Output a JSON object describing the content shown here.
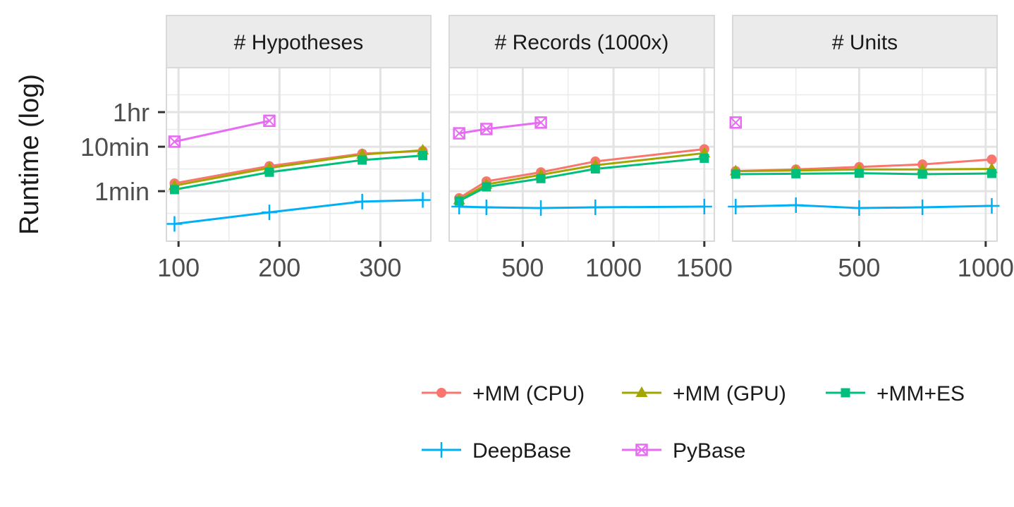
{
  "chart_data": {
    "type": "line",
    "ylabel": "Runtime (log)",
    "y_scale": "log",
    "y_unit": "seconds",
    "y_ticks": [
      {
        "label": "1min",
        "value": 60
      },
      {
        "label": "10min",
        "value": 600
      },
      {
        "label": "1hr",
        "value": 3600
      }
    ],
    "ylim": [
      4.5,
      36000
    ],
    "grid": true,
    "legend_position": "bottom-right",
    "colors": {
      "+MM (CPU)": "#F8766D",
      "+MM (GPU)": "#A3A500",
      "+MM+ES": "#00BF7D",
      "DeepBase": "#00B0F6",
      "PyBase": "#E76BF3"
    },
    "legend": [
      {
        "name": "+MM (CPU)",
        "marker": "circle"
      },
      {
        "name": "+MM (GPU)",
        "marker": "triangle"
      },
      {
        "name": "+MM+ES",
        "marker": "square"
      },
      {
        "name": "DeepBase",
        "marker": "plus"
      },
      {
        "name": "PyBase",
        "marker": "box-cross"
      }
    ],
    "panels": [
      {
        "strip": "# Hypotheses",
        "xlim": [
          88,
          350
        ],
        "x_ticks": [
          100,
          200,
          300
        ],
        "x_tick_labels": [
          "100",
          "200",
          "300"
        ],
        "series": [
          {
            "name": "+MM (CPU)",
            "x": [
              96,
              190,
              282,
              342
            ],
            "y": [
              90,
              220,
              420,
              480
            ]
          },
          {
            "name": "+MM (GPU)",
            "x": [
              96,
              190,
              282,
              342
            ],
            "y": [
              80,
              200,
              400,
              500
            ]
          },
          {
            "name": "+MM+ES",
            "x": [
              96,
              190,
              282,
              342
            ],
            "y": [
              65,
              160,
              300,
              380
            ]
          },
          {
            "name": "DeepBase",
            "x": [
              96,
              190,
              282,
              342
            ],
            "y": [
              11,
              20,
              35,
              38
            ]
          },
          {
            "name": "PyBase",
            "x": [
              96,
              190
            ],
            "y": [
              780,
              2300
            ]
          }
        ]
      },
      {
        "strip": "# Records (1000x)",
        "xlim": [
          95,
          1555
        ],
        "x_ticks": [
          500,
          1000,
          1500
        ],
        "x_tick_labels": [
          "500",
          "1000",
          "1500"
        ],
        "series": [
          {
            "name": "+MM (CPU)",
            "x": [
              150,
              300,
              600,
              900,
              1500
            ],
            "y": [
              42,
              100,
              160,
              280,
              530
            ]
          },
          {
            "name": "+MM (GPU)",
            "x": [
              150,
              300,
              600,
              900,
              1500
            ],
            "y": [
              38,
              85,
              140,
              230,
              430
            ]
          },
          {
            "name": "+MM+ES",
            "x": [
              150,
              300,
              600,
              900,
              1500
            ],
            "y": [
              36,
              75,
              115,
              190,
              330
            ]
          },
          {
            "name": "DeepBase",
            "x": [
              150,
              300,
              600,
              900,
              1500
            ],
            "y": [
              27,
              26,
              25,
              26,
              27
            ]
          },
          {
            "name": "PyBase",
            "x": [
              150,
              300,
              600
            ],
            "y": [
              1200,
              1500,
              2100
            ]
          }
        ]
      },
      {
        "strip": "# Units",
        "xlim": [
          0,
          1045
        ],
        "x_ticks": [
          500,
          1000
        ],
        "x_tick_labels": [
          "500",
          "1000"
        ],
        "series": [
          {
            "name": "+MM (CPU)",
            "x": [
              12,
              250,
              500,
              750,
              1024
            ],
            "y": [
              170,
              185,
              210,
              240,
              310
            ]
          },
          {
            "name": "+MM (GPU)",
            "x": [
              12,
              250,
              500,
              750,
              1024
            ],
            "y": [
              170,
              175,
              185,
              185,
              190
            ]
          },
          {
            "name": "+MM+ES",
            "x": [
              12,
              250,
              500,
              750,
              1024
            ],
            "y": [
              145,
              148,
              152,
              145,
              150
            ]
          },
          {
            "name": "DeepBase",
            "x": [
              12,
              250,
              500,
              750,
              1024
            ],
            "y": [
              27,
              29,
              25,
              26,
              28
            ]
          },
          {
            "name": "PyBase",
            "x": [
              12
            ],
            "y": [
              2100
            ]
          }
        ]
      }
    ]
  }
}
